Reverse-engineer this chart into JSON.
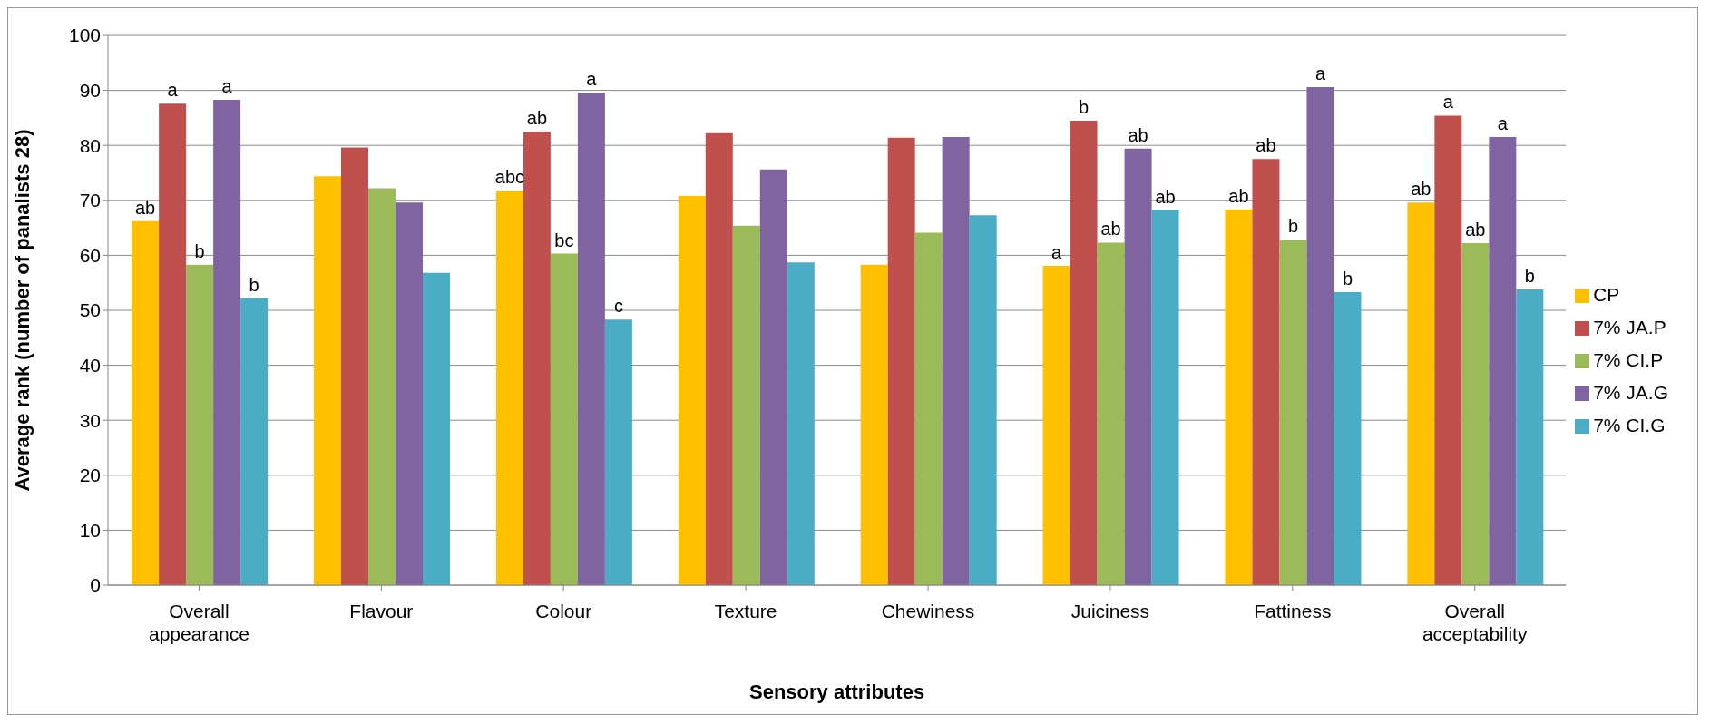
{
  "chart_data": {
    "type": "bar",
    "xlabel": "Sensory attributes",
    "ylabel": "Average rank (number of panalists 28)",
    "categories": [
      "Overall appearance",
      "Flavour",
      "Colour",
      "Texture",
      "Chewiness",
      "Juiciness",
      "Fattiness",
      "Overall acceptability"
    ],
    "ylim": [
      0,
      100
    ],
    "yticks": [
      0,
      10,
      20,
      30,
      40,
      50,
      60,
      70,
      80,
      90,
      100
    ],
    "grid": "y",
    "legend": "right",
    "series": [
      {
        "name": "CP",
        "color": "#ffc000",
        "values": [
          66.2,
          74.4,
          71.8,
          70.8,
          58.3,
          58.1,
          68.3,
          69.6
        ],
        "value_labels": [
          "ab",
          null,
          "abc",
          null,
          null,
          "a",
          "ab",
          "ab"
        ]
      },
      {
        "name": "7% JA.P",
        "color": "#c0504d",
        "values": [
          87.6,
          79.6,
          82.5,
          82.2,
          81.4,
          84.5,
          77.5,
          85.4
        ],
        "value_labels": [
          "a",
          null,
          "ab",
          null,
          null,
          "b",
          "ab",
          "a"
        ]
      },
      {
        "name": "7% CI.P",
        "color": "#9bbb59",
        "values": [
          58.3,
          72.2,
          60.3,
          65.4,
          64.1,
          62.3,
          62.8,
          62.2
        ],
        "value_labels": [
          "b",
          null,
          "bc",
          null,
          null,
          "ab",
          "b",
          "ab"
        ]
      },
      {
        "name": "7% JA.G",
        "color": "#8064a2",
        "values": [
          88.3,
          69.6,
          89.6,
          75.6,
          81.5,
          79.4,
          90.6,
          81.5
        ],
        "value_labels": [
          "a",
          null,
          "a",
          null,
          null,
          "ab",
          "a",
          "a"
        ]
      },
      {
        "name": "7% CI.G",
        "color": "#4bacc6",
        "values": [
          52.2,
          56.8,
          48.3,
          58.7,
          67.3,
          68.2,
          53.3,
          53.8
        ],
        "value_labels": [
          "b",
          null,
          "c",
          null,
          null,
          "ab",
          "b",
          "b"
        ]
      }
    ]
  }
}
